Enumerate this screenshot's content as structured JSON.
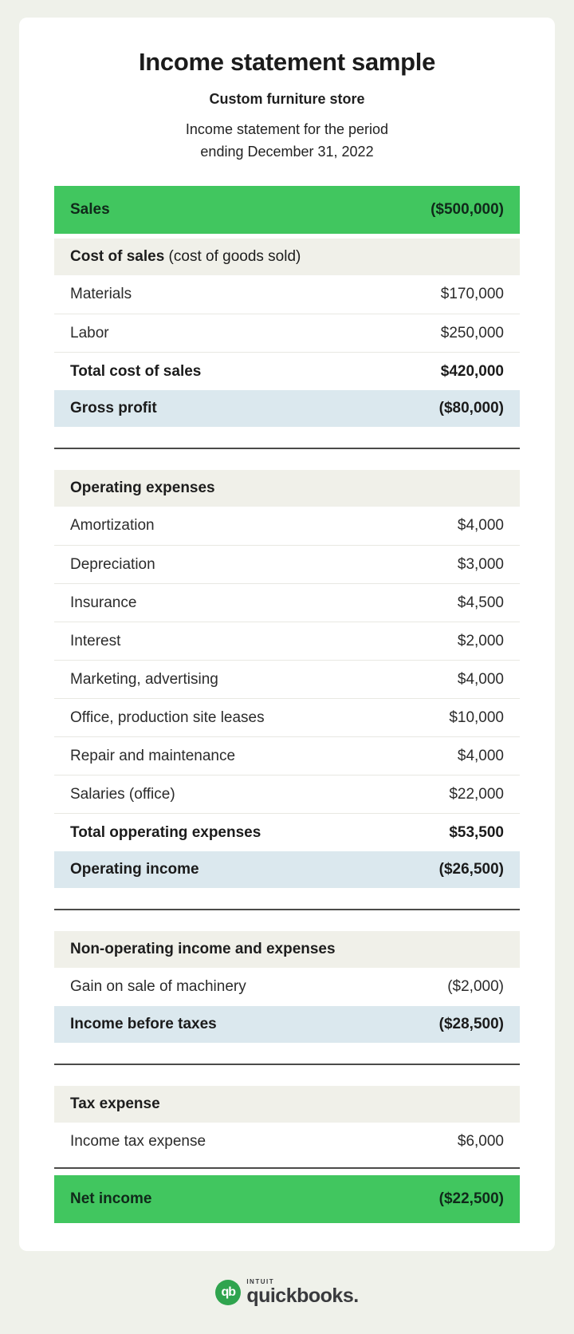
{
  "header": {
    "title": "Income statement sample",
    "company": "Custom furniture store",
    "period_line1": "Income statement for the period",
    "period_line2": "ending December 31, 2022"
  },
  "colors": {
    "green": "#41c65f",
    "section_bg": "#f0f0e9",
    "highlight_bg": "#dbe8ee",
    "page_bg": "#eff1ea",
    "divider_dark": "#4b4b49"
  },
  "statement": {
    "rows": [
      {
        "label": "Sales",
        "value": "($500,000)"
      },
      {
        "label": "Cost of sales",
        "suffix": " (cost of goods sold)"
      },
      {
        "label": "Materials",
        "value": "$170,000"
      },
      {
        "label": "Labor",
        "value": "$250,000"
      },
      {
        "label": "Total cost of sales",
        "value": "$420,000"
      },
      {
        "label": "Gross profit",
        "value": "($80,000)"
      },
      {
        "label": "Operating expenses"
      },
      {
        "label": "Amortization",
        "value": "$4,000"
      },
      {
        "label": "Depreciation",
        "value": "$3,000"
      },
      {
        "label": "Insurance",
        "value": "$4,500"
      },
      {
        "label": "Interest",
        "value": "$2,000"
      },
      {
        "label": "Marketing, advertising",
        "value": "$4,000"
      },
      {
        "label": "Office, production site leases",
        "value": "$10,000"
      },
      {
        "label": "Repair and maintenance",
        "value": "$4,000"
      },
      {
        "label": "Salaries (office)",
        "value": "$22,000"
      },
      {
        "label": "Total opperating expenses",
        "value": "$53,500"
      },
      {
        "label": "Operating income",
        "value": "($26,500)"
      },
      {
        "label": "Non-operating income and expenses"
      },
      {
        "label": "Gain on sale of machinery",
        "value": "($2,000)"
      },
      {
        "label": "Income before taxes",
        "value": "($28,500)"
      },
      {
        "label": "Tax expense"
      },
      {
        "label": "Income tax expense",
        "value": "$6,000"
      },
      {
        "label": "Net income",
        "value": "($22,500)"
      }
    ]
  },
  "footer": {
    "brand_top": "INTUIT",
    "brand_name": "quickbooks.",
    "monogram": "qb"
  }
}
